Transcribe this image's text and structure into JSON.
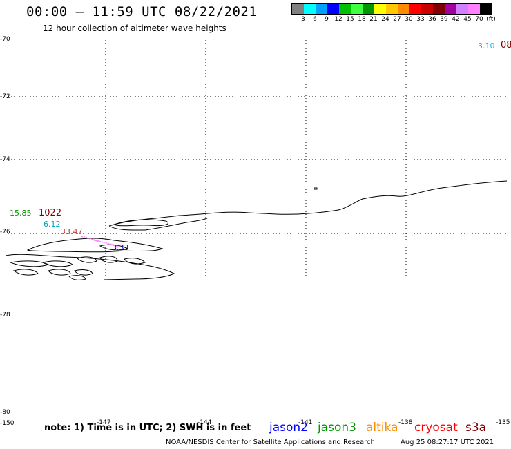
{
  "header": {
    "title": "00:00 – 11:59 UTC 08/22/2021",
    "subtitle": "12 hour collection of altimeter wave heights"
  },
  "legend": {
    "colors": [
      "#808080",
      "#00ffff",
      "#00a0ff",
      "#0000ff",
      "#00c000",
      "#40ff40",
      "#009600",
      "#ffff00",
      "#ffc800",
      "#ff8c00",
      "#ff0000",
      "#c80000",
      "#800000",
      "#a000a0",
      "#d080ff",
      "#ff80ff",
      "#000000"
    ],
    "labels": [
      "3",
      "6",
      "9",
      "12",
      "15",
      "18",
      "21",
      "24",
      "27",
      "30",
      "33",
      "36",
      "39",
      "42",
      "45",
      "70",
      "(ft)"
    ]
  },
  "axes": {
    "y_labels": [
      "-70",
      "-72",
      "-74",
      "-76",
      "-78",
      "-80"
    ],
    "x_labels": [
      "-150",
      "-147",
      "-144",
      "-141",
      "-138",
      "-135"
    ]
  },
  "wave_labels": [
    {
      "text": "3.10",
      "color": "#00c0ff"
    },
    {
      "text": "08",
      "color": "#800000"
    },
    {
      "text": "15.85",
      "color": "#009600"
    },
    {
      "text": "1022",
      "color": "#800000"
    },
    {
      "text": "6.12",
      "color": "#00a0c0"
    },
    {
      "text": "33.47",
      "color": "#c04040"
    },
    {
      "text": "3.33",
      "color": "#0000c0"
    }
  ],
  "footer": {
    "note": "note: 1) Time is in UTC; 2) SWH is in feet",
    "satellites": [
      {
        "name": "jason2",
        "color": "#0000ff"
      },
      {
        "name": "jason3",
        "color": "#009600"
      },
      {
        "name": "altika",
        "color": "#ff8c00"
      },
      {
        "name": "cryosat",
        "color": "#ff0000"
      },
      {
        "name": "s3a",
        "color": "#800000"
      }
    ],
    "credit": "NOAA/NESDIS Center for Satellite Applications and Research",
    "timestamp": "Aug 25 08:27:17 UTC 2021"
  }
}
